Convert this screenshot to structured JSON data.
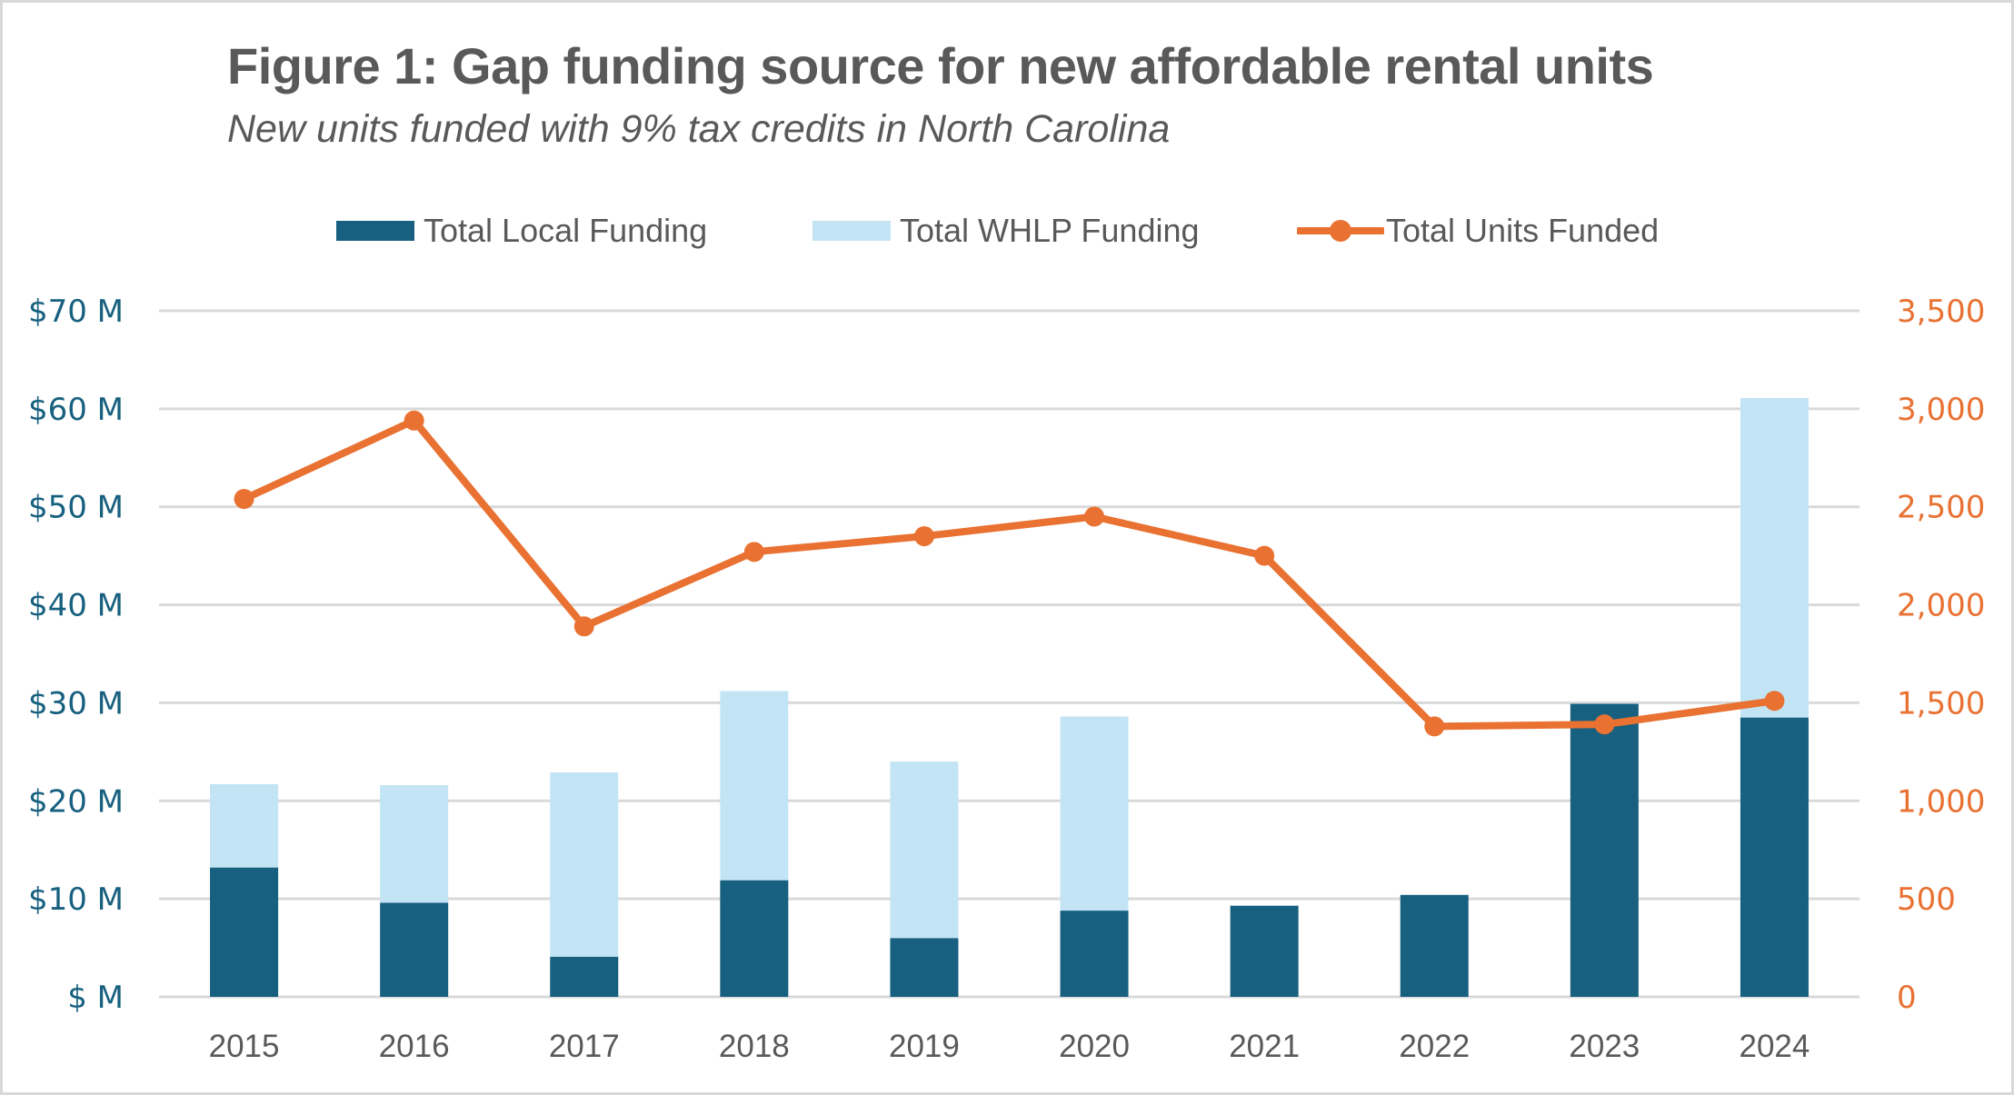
{
  "title": "Figure 1: Gap funding source for new affordable rental units",
  "subtitle": "New units funded with 9% tax credits in North Carolina",
  "legend": [
    {
      "label": "Total Local Funding",
      "type": "bar",
      "color": "#17607f"
    },
    {
      "label": "Total WHLP Funding",
      "type": "bar",
      "color": "#c2e4f5"
    },
    {
      "label": "Total Units Funded",
      "type": "line-marker",
      "color": "#e97132"
    }
  ],
  "colors": {
    "local": "#17607f",
    "whlp": "#c2e4f5",
    "units": "#e97132",
    "grid": "#d9d9d9",
    "text": "#595959",
    "left_axis": "#17607f",
    "right_axis": "#e97132"
  },
  "chart_data": {
    "type": "bar",
    "subtype": "stacked-bar-with-line-secondary-axis",
    "title": "Figure 1: Gap funding source for new affordable rental units",
    "subtitle": "New units funded with 9% tax credits in North Carolina",
    "categories": [
      "2015",
      "2016",
      "2017",
      "2018",
      "2019",
      "2020",
      "2021",
      "2022",
      "2023",
      "2024"
    ],
    "series": [
      {
        "name": "Total Local Funding",
        "type": "bar",
        "axis": "left",
        "unit": "$M",
        "values": [
          13.2,
          9.6,
          4.1,
          11.9,
          6.0,
          8.8,
          9.3,
          10.4,
          29.9,
          28.5
        ]
      },
      {
        "name": "Total WHLP Funding",
        "type": "bar",
        "axis": "left",
        "unit": "$M",
        "values": [
          8.5,
          12.0,
          18.8,
          19.3,
          18.0,
          19.8,
          0,
          0,
          0,
          32.6
        ]
      },
      {
        "name": "Total Units Funded",
        "type": "line",
        "axis": "right",
        "unit": "units",
        "values": [
          2540,
          2940,
          1890,
          2270,
          2350,
          2450,
          2250,
          1380,
          1390,
          1510
        ]
      }
    ],
    "y_left": {
      "ylim": [
        0,
        70
      ],
      "ticks": [
        0,
        10,
        20,
        30,
        40,
        50,
        60,
        70
      ],
      "tick_labels": [
        "$ M",
        "$10 M",
        "$20 M",
        "$30 M",
        "$40 M",
        "$50 M",
        "$60 M",
        "$70 M"
      ]
    },
    "y_right": {
      "ylim": [
        0,
        3500
      ],
      "ticks": [
        0,
        500,
        1000,
        1500,
        2000,
        2500,
        3000,
        3500
      ],
      "tick_labels": [
        "0",
        "500",
        "1,000",
        "1,500",
        "2,000",
        "2,500",
        "3,000",
        "3,500"
      ]
    },
    "xlabel": "",
    "ylabel": "",
    "grid": true,
    "legend_position": "top"
  }
}
